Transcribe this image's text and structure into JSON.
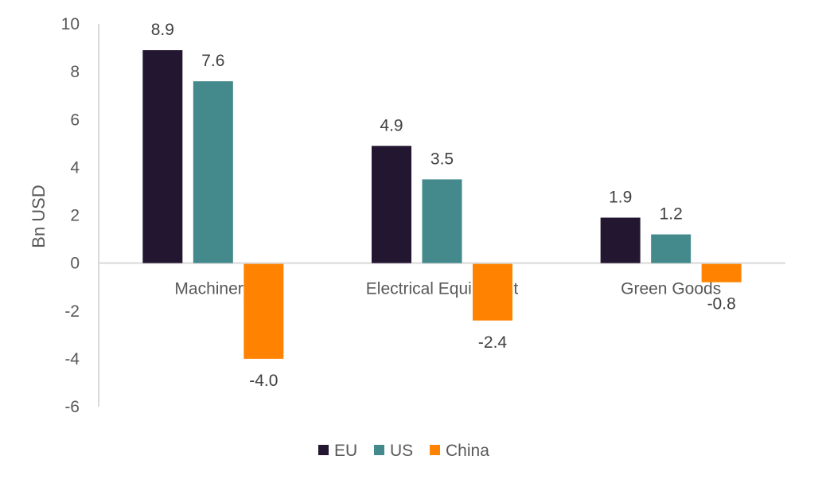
{
  "chart_data": {
    "type": "bar",
    "title": "",
    "xlabel": "",
    "ylabel": "Bn USD",
    "ylim": [
      -6,
      10
    ],
    "yticks": [
      10,
      8,
      6,
      4,
      2,
      0,
      -2,
      -4,
      -6
    ],
    "ytick_labels": [
      "10",
      "8",
      "6",
      "4",
      "2",
      "0",
      "-2",
      "-4",
      "-6"
    ],
    "grid": false,
    "legend_position": "bottom",
    "categories": [
      "Machinery",
      "Electrical Equipment",
      "Green Goods"
    ],
    "series": [
      {
        "name": "EU",
        "color": "#231631",
        "values": [
          8.9,
          4.9,
          1.9
        ],
        "labels": [
          "8.9",
          "4.9",
          "1.9"
        ]
      },
      {
        "name": "US",
        "color": "#44898B",
        "values": [
          7.6,
          3.5,
          1.2
        ],
        "labels": [
          "7.6",
          "3.5",
          "1.2"
        ]
      },
      {
        "name": "China",
        "color": "#FF8300",
        "values": [
          -4.0,
          -2.4,
          -0.8
        ],
        "labels": [
          "-4.0",
          "-2.4",
          "-0.8"
        ]
      }
    ]
  }
}
